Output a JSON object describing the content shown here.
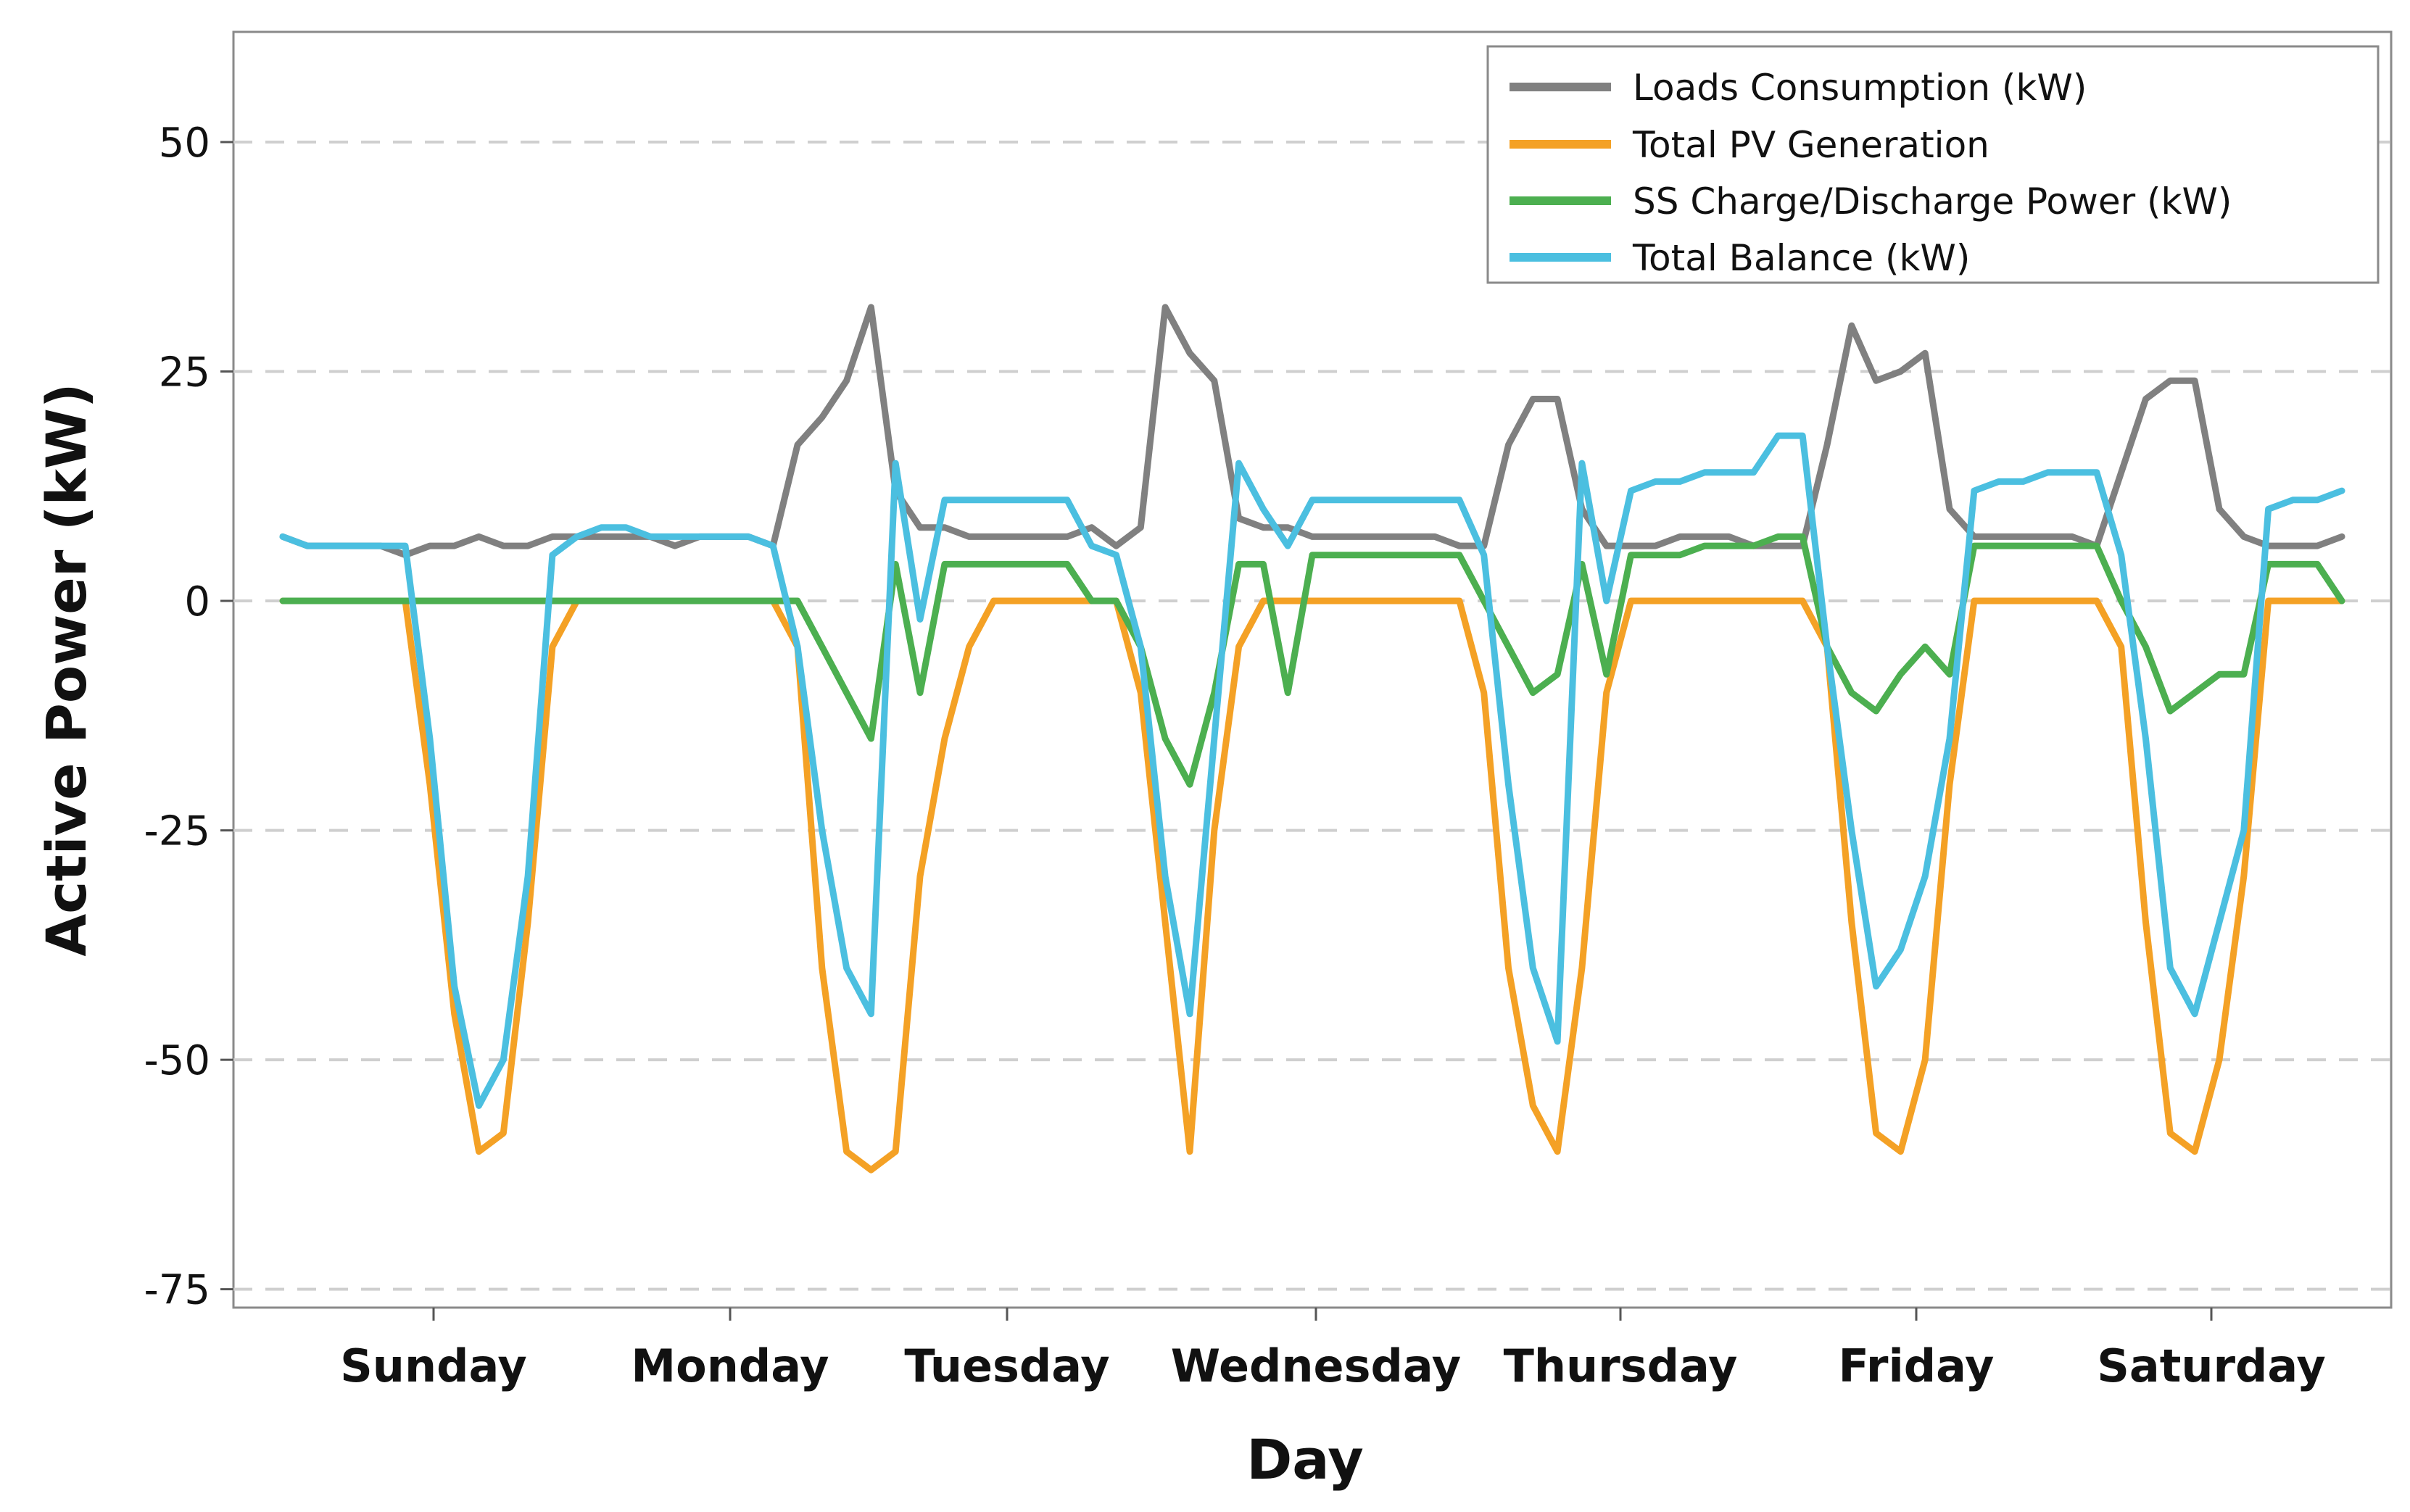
{
  "chart_data": {
    "type": "line",
    "title": "",
    "xlabel": "Day",
    "ylabel": "Active Power (kW)",
    "ylim": [
      -77,
      62
    ],
    "yticks": [
      50,
      25,
      0,
      -25,
      -50,
      -75
    ],
    "ytick_labels": [
      "50",
      "25",
      "0",
      "-25",
      "-50",
      "-75"
    ],
    "grid": "horizontal dashed",
    "legend_position": "top-right",
    "categories": [
      "Sunday",
      "Monday",
      "Tuesday",
      "Wednesday",
      "Thursday",
      "Friday",
      "Saturday"
    ],
    "x": [
      0,
      2,
      4,
      6,
      8,
      10,
      12,
      14,
      16,
      18,
      20,
      22,
      24,
      26,
      28,
      30,
      32,
      34,
      36,
      38,
      40,
      42,
      44,
      46,
      48,
      50,
      52,
      54,
      56,
      58,
      60,
      62,
      64,
      66,
      68,
      70,
      72,
      74,
      76,
      78,
      80,
      82,
      84,
      86,
      88,
      90,
      92,
      94,
      96,
      98,
      100,
      102,
      104,
      106,
      108,
      110,
      112,
      114,
      116,
      118,
      120,
      122,
      124,
      126,
      128,
      130,
      132,
      134,
      136,
      138,
      140,
      142,
      144,
      146,
      148,
      150,
      152,
      154,
      156,
      158,
      160,
      162,
      164,
      166,
      168
    ],
    "series": [
      {
        "name": "Loads Consumption (kW)",
        "color": "#808080",
        "values": [
          7,
          6,
          6,
          6,
          6,
          5,
          6,
          6,
          7,
          6,
          6,
          7,
          7,
          7,
          7,
          7,
          6,
          7,
          7,
          7,
          6,
          17,
          20,
          24,
          32,
          12,
          8,
          8,
          7,
          7,
          7,
          7,
          7,
          8,
          6,
          8,
          32,
          27,
          24,
          9,
          8,
          8,
          7,
          7,
          7,
          7,
          7,
          7,
          6,
          6,
          17,
          22,
          22,
          10,
          6,
          6,
          6,
          7,
          7,
          7,
          6,
          6,
          6,
          17,
          30,
          24,
          25,
          27,
          10,
          7,
          7,
          7,
          7,
          7,
          6,
          14,
          22,
          24,
          24,
          10,
          7,
          6,
          6,
          6,
          7
        ]
      },
      {
        "name": "Total PV Generation",
        "color": "#f4a125",
        "values": [
          0,
          0,
          0,
          0,
          0,
          0,
          -20,
          -45,
          -60,
          -58,
          -35,
          -5,
          0,
          0,
          0,
          0,
          0,
          0,
          0,
          0,
          0,
          -5,
          -40,
          -60,
          -62,
          -60,
          -30,
          -15,
          -5,
          0,
          0,
          0,
          0,
          0,
          0,
          -10,
          -35,
          -60,
          -25,
          -5,
          0,
          0,
          0,
          0,
          0,
          0,
          0,
          0,
          0,
          -10,
          -40,
          -55,
          -60,
          -40,
          -10,
          0,
          0,
          0,
          0,
          0,
          0,
          0,
          0,
          -5,
          -35,
          -58,
          -60,
          -50,
          -20,
          0,
          0,
          0,
          0,
          0,
          0,
          -5,
          -35,
          -58,
          -60,
          -50,
          -30,
          0,
          0,
          0,
          0
        ]
      },
      {
        "name": "SS Charge/Discharge Power (kW)",
        "color": "#4caf50",
        "values": [
          0,
          0,
          0,
          0,
          0,
          0,
          0,
          0,
          0,
          0,
          0,
          0,
          0,
          0,
          0,
          0,
          0,
          0,
          0,
          0,
          0,
          0,
          -5,
          -10,
          -15,
          4,
          -10,
          4,
          4,
          4,
          4,
          4,
          4,
          0,
          0,
          -5,
          -15,
          -20,
          -10,
          4,
          4,
          -10,
          5,
          5,
          5,
          5,
          5,
          5,
          5,
          0,
          -5,
          -10,
          -8,
          4,
          -8,
          5,
          5,
          5,
          6,
          6,
          6,
          7,
          7,
          -5,
          -10,
          -12,
          -8,
          -5,
          -8,
          6,
          6,
          6,
          6,
          6,
          6,
          0,
          -5,
          -12,
          -10,
          -8,
          -8,
          4,
          4,
          4,
          0
        ]
      },
      {
        "name": "Total Balance (kW)",
        "color": "#4bbfe0",
        "values": [
          7,
          6,
          6,
          6,
          6,
          6,
          -15,
          -42,
          -55,
          -50,
          -30,
          5,
          7,
          8,
          8,
          7,
          7,
          7,
          7,
          7,
          6,
          -5,
          -25,
          -40,
          -45,
          15,
          -2,
          11,
          11,
          11,
          11,
          11,
          11,
          6,
          5,
          -5,
          -30,
          -45,
          -15,
          15,
          10,
          6,
          11,
          11,
          11,
          11,
          11,
          11,
          11,
          5,
          -20,
          -40,
          -48,
          15,
          0,
          12,
          13,
          13,
          14,
          14,
          14,
          18,
          18,
          -5,
          -25,
          -42,
          -38,
          -30,
          -15,
          12,
          13,
          13,
          14,
          14,
          14,
          5,
          -15,
          -40,
          -45,
          -35,
          -25,
          10,
          11,
          11,
          12
        ]
      }
    ]
  }
}
